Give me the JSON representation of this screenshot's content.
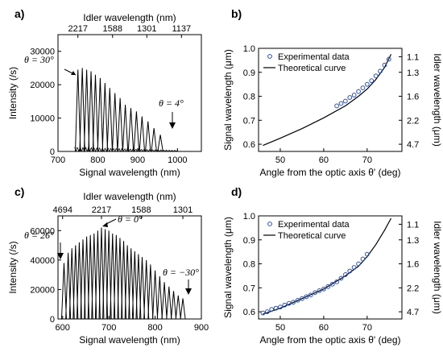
{
  "chart_data": [
    {
      "panel": "a)",
      "type": "line",
      "title": "",
      "xlabel": "Signal wavelength (nm)",
      "ylabel": "Intensity (/s)",
      "top_axis_label": "Idler wavelength (nm)",
      "xlim": [
        700,
        1060
      ],
      "ylim": [
        0,
        35000
      ],
      "xticks": [
        "700",
        "800",
        "900",
        "1000"
      ],
      "yticks": [
        "0",
        "10000",
        "20000",
        "30000"
      ],
      "top_ticks": [
        {
          "signal_nm": 750,
          "label": "2217"
        },
        {
          "signal_nm": 837,
          "label": "1588"
        },
        {
          "signal_nm": 923,
          "label": "1301"
        },
        {
          "signal_nm": 1010,
          "label": "1137"
        }
      ],
      "peaks": {
        "x": [
          750,
          761,
          772,
          783,
          794,
          806,
          818,
          830,
          843,
          856,
          869,
          883,
          897,
          911,
          926,
          941,
          957
        ],
        "y": [
          24500,
          25000,
          24500,
          24000,
          23000,
          22000,
          20500,
          19000,
          17500,
          16000,
          14000,
          13000,
          12000,
          10500,
          9000,
          7000,
          5000
        ]
      },
      "annotations": [
        {
          "text": "θ = 30°",
          "x": 750,
          "y": 24500
        },
        {
          "text": "θ = 4°",
          "x": 960,
          "y": 5000
        }
      ]
    },
    {
      "panel": "b)",
      "type": "scatter",
      "title": "",
      "xlabel": "Angle from the optic axis θ' (deg)",
      "ylabel": "Signal wavelength (μm)",
      "right_axis_label": "Idler wavelength (μm)",
      "xlim": [
        45,
        78
      ],
      "ylim": [
        0.57,
        1.0
      ],
      "xticks": [
        "50",
        "60",
        "70"
      ],
      "yticks": [
        "0.6",
        "0.7",
        "0.8",
        "0.9",
        "1.0"
      ],
      "right_ticks": [
        {
          "signal_um": 0.6,
          "label": "4.7"
        },
        {
          "signal_um": 0.7,
          "label": "2.2"
        },
        {
          "signal_um": 0.8,
          "label": "1.6"
        },
        {
          "signal_um": 0.9,
          "label": "1.3"
        },
        {
          "signal_um": 0.965,
          "label": "1.1"
        }
      ],
      "legend": [
        "Experimental data",
        "Theoretical curve"
      ],
      "legend_position": "top-left",
      "series": [
        {
          "name": "Experimental data",
          "x": [
            63,
            64,
            65,
            66,
            67,
            68,
            69,
            70,
            71,
            72,
            73,
            74,
            75
          ],
          "y": [
            0.76,
            0.77,
            0.78,
            0.795,
            0.805,
            0.82,
            0.835,
            0.85,
            0.865,
            0.885,
            0.905,
            0.93,
            0.955
          ]
        },
        {
          "name": "Theoretical curve",
          "x": [
            46,
            50,
            55,
            60,
            65,
            68,
            70,
            72,
            74,
            75.5
          ],
          "y": [
            0.595,
            0.625,
            0.665,
            0.71,
            0.76,
            0.8,
            0.83,
            0.87,
            0.92,
            0.975
          ]
        }
      ]
    },
    {
      "panel": "c)",
      "type": "line",
      "title": "",
      "xlabel": "Signal wavelength (nm)",
      "ylabel": "Intensity (/s)",
      "top_axis_label": "Idler wavelength (nm)",
      "xlim": [
        590,
        900
      ],
      "ylim": [
        0,
        70000
      ],
      "xticks": [
        "600",
        "700",
        "800",
        "900"
      ],
      "yticks": [
        "0",
        "20000",
        "40000",
        "60000"
      ],
      "top_ticks": [
        {
          "signal_nm": 600,
          "label": "4694"
        },
        {
          "signal_nm": 684,
          "label": "2217"
        },
        {
          "signal_nm": 770,
          "label": "1588"
        },
        {
          "signal_nm": 860,
          "label": "1301"
        }
      ],
      "peaks": {
        "x": [
          603,
          612,
          620,
          628,
          636,
          644,
          652,
          660,
          668,
          676,
          684,
          692,
          700,
          708,
          716,
          724,
          732,
          740,
          748,
          756,
          764,
          772,
          781,
          790,
          800,
          810,
          820,
          830,
          840,
          850,
          860
        ],
        "y": [
          38000,
          45000,
          48000,
          50000,
          52000,
          54000,
          56000,
          57000,
          58000,
          60000,
          62000,
          61000,
          60000,
          58000,
          57000,
          55000,
          53000,
          50000,
          48000,
          46000,
          44000,
          42000,
          40000,
          37000,
          33000,
          29000,
          25000,
          22000,
          19000,
          16000,
          14000
        ]
      },
      "annotations": [
        {
          "text": "θ = 0°",
          "x": 684,
          "y": 62000
        },
        {
          "text": "θ = 26°",
          "x": 603,
          "y": 38000
        },
        {
          "text": "θ = −30°",
          "x": 860,
          "y": 14000
        }
      ]
    },
    {
      "panel": "d)",
      "type": "scatter",
      "title": "",
      "xlabel": "Angle from the optic axis θ' (deg)",
      "ylabel": "Signal wavelength (μm)",
      "right_axis_label": "Idler wavelength (μm)",
      "xlim": [
        45,
        78
      ],
      "ylim": [
        0.57,
        1.0
      ],
      "xticks": [
        "50",
        "60",
        "70"
      ],
      "yticks": [
        "0.6",
        "0.7",
        "0.8",
        "0.9",
        "1.0"
      ],
      "right_ticks": [
        {
          "signal_um": 0.6,
          "label": "4.7"
        },
        {
          "signal_um": 0.7,
          "label": "2.2"
        },
        {
          "signal_um": 0.8,
          "label": "1.6"
        },
        {
          "signal_um": 0.9,
          "label": "1.3"
        },
        {
          "signal_um": 0.965,
          "label": "1.1"
        }
      ],
      "legend": [
        "Experimental data",
        "Theoretical curve"
      ],
      "legend_position": "top-left",
      "series": [
        {
          "name": "Experimental data",
          "x": [
            46,
            47,
            48,
            49,
            50,
            51,
            52,
            53,
            54,
            55,
            56,
            57,
            58,
            59,
            60,
            61,
            62,
            63,
            64,
            65,
            66,
            67,
            68,
            69,
            70
          ],
          "y": [
            0.595,
            0.6,
            0.61,
            0.615,
            0.62,
            0.628,
            0.635,
            0.64,
            0.648,
            0.655,
            0.663,
            0.67,
            0.68,
            0.688,
            0.695,
            0.705,
            0.715,
            0.725,
            0.74,
            0.755,
            0.77,
            0.785,
            0.8,
            0.82,
            0.84
          ]
        },
        {
          "name": "Theoretical curve",
          "x": [
            46,
            50,
            55,
            60,
            65,
            68,
            70,
            72,
            74,
            75.5
          ],
          "y": [
            0.59,
            0.615,
            0.655,
            0.695,
            0.75,
            0.79,
            0.83,
            0.88,
            0.94,
            0.99
          ]
        }
      ]
    }
  ]
}
